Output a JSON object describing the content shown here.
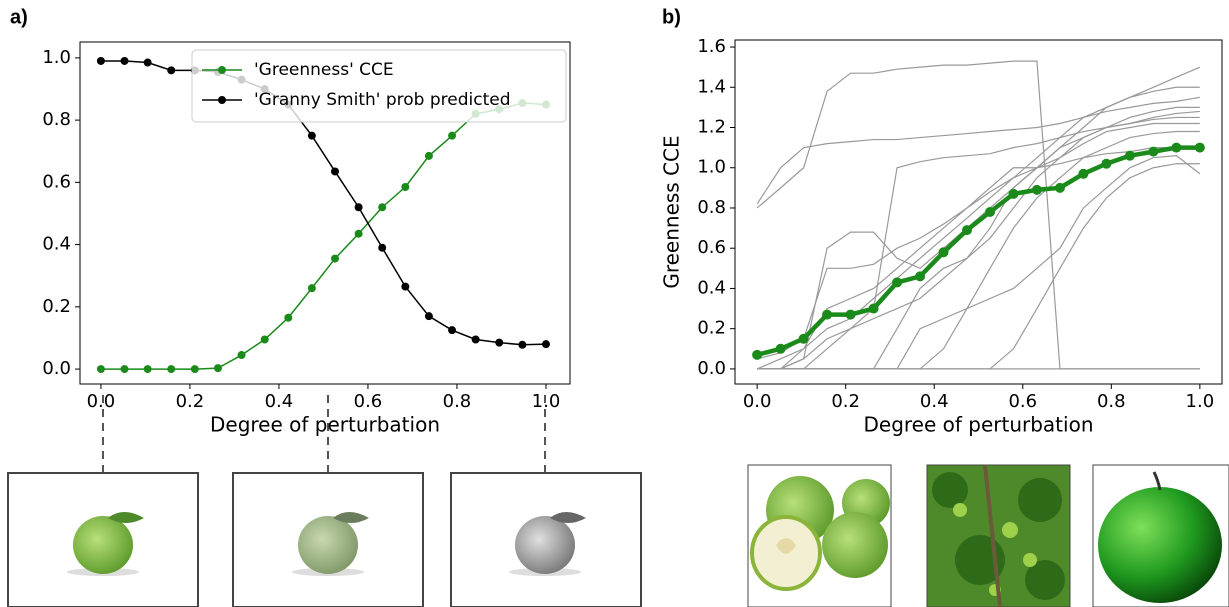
{
  "chart_data": [
    {
      "type": "line",
      "panel": "a)",
      "xlabel": "Degree of perturbation",
      "x": [
        0,
        0.053,
        0.105,
        0.158,
        0.211,
        0.263,
        0.316,
        0.368,
        0.421,
        0.474,
        0.526,
        0.579,
        0.632,
        0.684,
        0.737,
        0.789,
        0.842,
        0.895,
        0.947,
        1
      ],
      "series": [
        {
          "name": "'Greenness' CCE",
          "color": "#1a8a1a",
          "marker": true,
          "values": [
            0,
            0,
            0,
            0,
            0,
            0.003,
            0.045,
            0.095,
            0.165,
            0.26,
            0.355,
            0.435,
            0.52,
            0.585,
            0.685,
            0.75,
            0.82,
            0.835,
            0.855,
            0.85
          ]
        },
        {
          "name": "'Granny Smith' prob predicted",
          "color": "#000000",
          "marker": true,
          "values": [
            0.99,
            0.99,
            0.985,
            0.96,
            0.96,
            0.955,
            0.93,
            0.9,
            0.85,
            0.75,
            0.635,
            0.52,
            0.39,
            0.265,
            0.17,
            0.125,
            0.095,
            0.085,
            0.078,
            0.08
          ]
        }
      ],
      "xlim": [
        -0.047,
        1.054
      ],
      "ylim": [
        -0.048,
        1.051
      ],
      "xticks": [
        {
          "value": 0,
          "label": "0.0"
        },
        {
          "value": 0.2,
          "label": "0.2"
        },
        {
          "value": 0.4,
          "label": "0.4"
        },
        {
          "value": 0.6,
          "label": "0.6"
        },
        {
          "value": 0.8,
          "label": "0.8"
        },
        {
          "value": 1,
          "label": "1.0"
        }
      ],
      "yticks": [
        {
          "value": 0,
          "label": "0.0"
        },
        {
          "value": 0.2,
          "label": "0.2"
        },
        {
          "value": 0.4,
          "label": "0.4"
        },
        {
          "value": 0.6,
          "label": "0.6"
        },
        {
          "value": 0.8,
          "label": "0.8"
        },
        {
          "value": 1,
          "label": "1.0"
        }
      ],
      "legend": "upper right"
    },
    {
      "type": "line",
      "panel": "b)",
      "xlabel": "Degree of perturbation",
      "ylabel": "Greenness CCE",
      "x": [
        0,
        0.053,
        0.105,
        0.158,
        0.211,
        0.263,
        0.316,
        0.368,
        0.421,
        0.474,
        0.526,
        0.579,
        0.632,
        0.684,
        0.737,
        0.789,
        0.842,
        0.895,
        0.947,
        1
      ],
      "series": [
        {
          "color": "#999999",
          "values": [
            0.8,
            0.9,
            1.0,
            1.38,
            1.47,
            1.47,
            1.49,
            1.5,
            1.51,
            1.51,
            1.52,
            1.53,
            1.53,
            0,
            0,
            0,
            0,
            0,
            0,
            0
          ]
        },
        {
          "color": "#999999",
          "values": [
            0.82,
            1.0,
            1.1,
            1.12,
            1.13,
            1.14,
            1.14,
            1.15,
            1.16,
            1.17,
            1.18,
            1.19,
            1.2,
            1.22,
            1.25,
            1.28,
            1.3,
            1.32,
            1.33,
            1.35
          ]
        },
        {
          "color": "#999999",
          "values": [
            0,
            0,
            0,
            0,
            0,
            0,
            0,
            0,
            0,
            0,
            0,
            0,
            0,
            0,
            0,
            0,
            0,
            0,
            0,
            0
          ]
        },
        {
          "color": "#999999",
          "values": [
            0,
            0,
            0.05,
            0.6,
            0.68,
            0.68,
            0.55,
            0.5,
            0.6,
            0.7,
            0.8,
            0.9,
            1.0,
            1.1,
            1.2,
            1.3,
            1.35,
            1.4,
            1.45,
            1.5
          ]
        },
        {
          "color": "#999999",
          "values": [
            0,
            0,
            0,
            0.1,
            0.2,
            0.3,
            1.0,
            1.03,
            1.05,
            1.06,
            1.07,
            1.1,
            1.12,
            1.15,
            1.18,
            1.2,
            1.22,
            1.25,
            1.27,
            1.28
          ]
        },
        {
          "color": "#999999",
          "values": [
            0,
            0,
            0,
            0,
            0,
            0,
            0.2,
            0.4,
            0.5,
            0.55,
            0.7,
            0.9,
            1.0,
            1.1,
            1.15,
            1.2,
            1.22,
            1.24,
            1.25,
            1.25
          ]
        },
        {
          "color": "#999999",
          "values": [
            0,
            0,
            0,
            0,
            0,
            0,
            0,
            0,
            0.1,
            0.3,
            0.5,
            0.7,
            0.85,
            0.95,
            1.05,
            1.1,
            1.15,
            1.17,
            1.18,
            1.18
          ]
        },
        {
          "color": "#999999",
          "values": [
            0,
            0,
            0.1,
            0.3,
            0.35,
            0.4,
            0.5,
            0.6,
            0.7,
            0.8,
            0.9,
            1.0,
            1.0,
            1.02,
            1.05,
            1.07,
            1.08,
            1.1,
            1.1,
            1.1
          ]
        },
        {
          "color": "#999999",
          "values": [
            0,
            0,
            0,
            0,
            0,
            0,
            0,
            0,
            0,
            0,
            0,
            0.1,
            0.3,
            0.5,
            0.7,
            0.85,
            0.95,
            1.0,
            1.02,
            1.02
          ]
        },
        {
          "color": "#999999",
          "values": [
            0,
            0.05,
            0.1,
            0.2,
            0.25,
            0.35,
            0.45,
            0.55,
            0.65,
            0.75,
            0.85,
            0.95,
            1.05,
            1.15,
            1.25,
            1.3,
            1.35,
            1.38,
            1.4,
            1.4
          ]
        },
        {
          "color": "#999999",
          "values": [
            0.05,
            0.08,
            0.15,
            0.5,
            0.5,
            0.52,
            0.6,
            0.65,
            0.72,
            0.8,
            0.88,
            0.95,
            1.0,
            1.05,
            1.12,
            1.18,
            1.2,
            1.22,
            1.22,
            1.22
          ]
        },
        {
          "color": "#999999",
          "values": [
            0,
            0,
            0,
            0,
            0,
            0,
            0,
            0.2,
            0.25,
            0.3,
            0.35,
            0.4,
            0.5,
            0.6,
            0.8,
            0.9,
            1.0,
            1.05,
            1.06,
            0.97
          ]
        },
        {
          "color": "#999999",
          "values": [
            0,
            0,
            0.05,
            0.15,
            0.2,
            0.25,
            0.3,
            0.35,
            0.45,
            0.55,
            0.65,
            0.8,
            0.95,
            1.05,
            1.15,
            1.2,
            1.25,
            1.28,
            1.3,
            1.3
          ]
        },
        {
          "color": "#1a8a1a",
          "marker": true,
          "values": [
            0.07,
            0.1,
            0.15,
            0.27,
            0.27,
            0.3,
            0.43,
            0.46,
            0.58,
            0.69,
            0.78,
            0.87,
            0.89,
            0.9,
            0.97,
            1.02,
            1.06,
            1.08,
            1.1,
            1.1
          ]
        }
      ],
      "xlim": [
        -0.05,
        1.05
      ],
      "ylim": [
        -0.075,
        1.635
      ],
      "xticks": [
        {
          "value": 0,
          "label": "0.0"
        },
        {
          "value": 0.2,
          "label": "0.2"
        },
        {
          "value": 0.4,
          "label": "0.4"
        },
        {
          "value": 0.6,
          "label": "0.6"
        },
        {
          "value": 0.8,
          "label": "0.8"
        },
        {
          "value": 1,
          "label": "1.0"
        }
      ],
      "yticks": [
        {
          "value": 0,
          "label": "0.0"
        },
        {
          "value": 0.2,
          "label": "0.2"
        },
        {
          "value": 0.4,
          "label": "0.4"
        },
        {
          "value": 0.6,
          "label": "0.6"
        },
        {
          "value": 0.8,
          "label": "0.8"
        },
        {
          "value": 1,
          "label": "1.0"
        },
        {
          "value": 1.2,
          "label": "1.2"
        },
        {
          "value": 1.4,
          "label": "1.4"
        },
        {
          "value": 1.6,
          "label": "1.6"
        }
      ]
    }
  ]
}
